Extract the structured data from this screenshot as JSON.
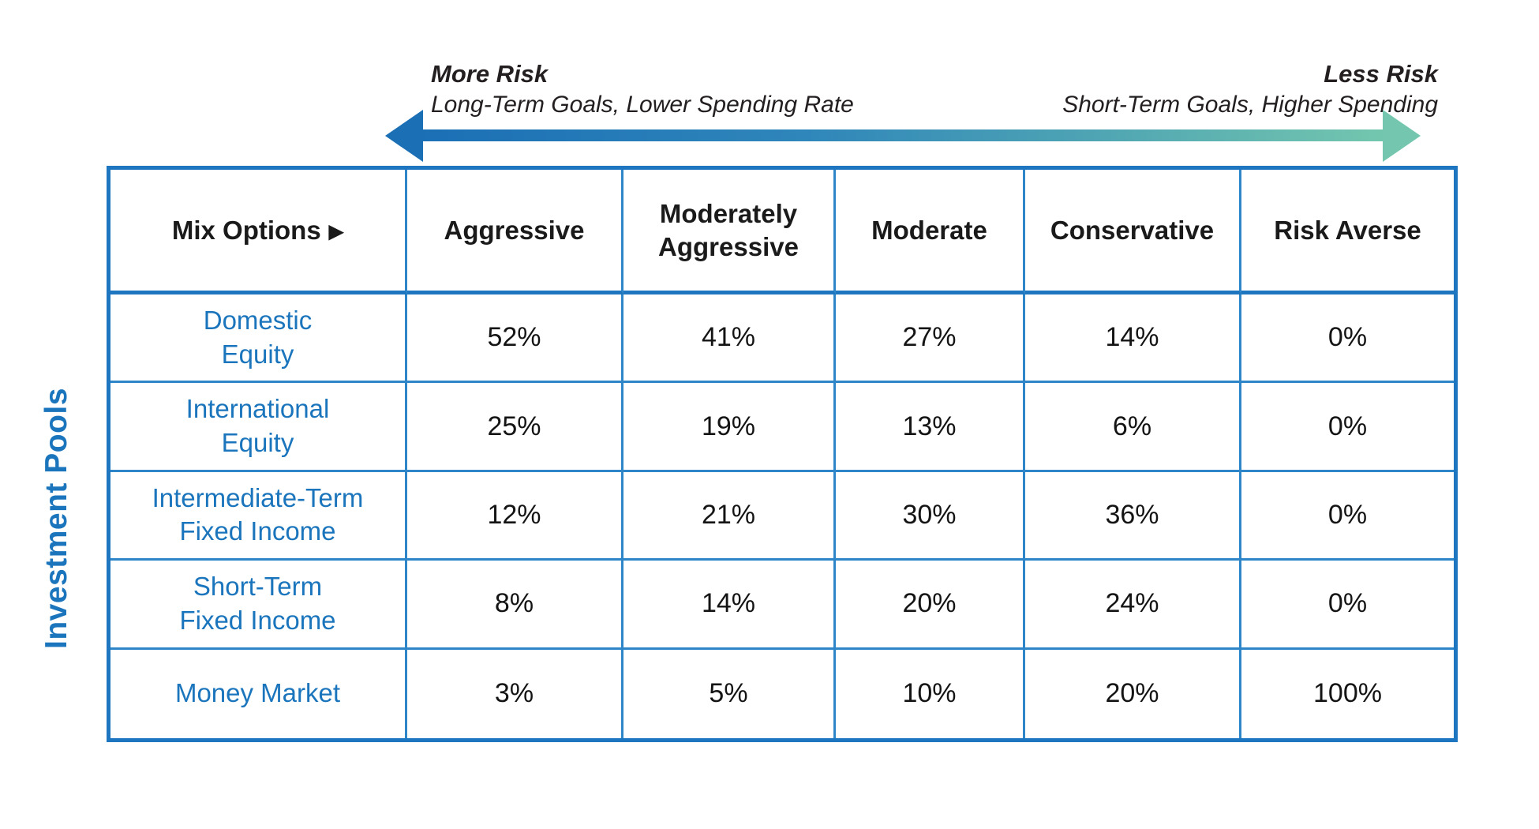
{
  "colors": {
    "table_outer_border": "#1d76bf",
    "cell_border": "#2e86c9",
    "row_label_blue": "#1b75bc",
    "arrow_left_blue": "#1b6fb5",
    "arrow_right_teal": "#74c7ae",
    "text_dark": "#231f20"
  },
  "risk_scale": {
    "left_title": "More Risk",
    "left_subtitle": "Long-Term Goals, Lower Spending Rate",
    "right_title": "Less Risk",
    "right_subtitle": "Short-Term Goals, Higher Spending"
  },
  "side_label": "Investment Pools",
  "table": {
    "corner_label": "Mix Options",
    "corner_arrow_icon": "▶",
    "columns": [
      "Aggressive",
      "Moderately Aggressive",
      "Moderate",
      "Conservative",
      "Risk Averse"
    ],
    "rows": [
      {
        "label": "Domestic\nEquity",
        "values": [
          "52%",
          "41%",
          "27%",
          "14%",
          "0%"
        ]
      },
      {
        "label": "International\nEquity",
        "values": [
          "25%",
          "19%",
          "13%",
          "6%",
          "0%"
        ]
      },
      {
        "label": "Intermediate-Term\nFixed Income",
        "values": [
          "12%",
          "21%",
          "30%",
          "36%",
          "0%"
        ]
      },
      {
        "label": "Short-Term\nFixed Income",
        "values": [
          "8%",
          "14%",
          "20%",
          "24%",
          "0%"
        ]
      },
      {
        "label": "Money Market",
        "values": [
          "3%",
          "5%",
          "10%",
          "20%",
          "100%"
        ]
      }
    ]
  },
  "chart_data": {
    "type": "table",
    "column_axis_label": "Mix Options",
    "row_axis_label": "Investment Pools",
    "columns": [
      "Aggressive",
      "Moderately Aggressive",
      "Moderate",
      "Conservative",
      "Risk Averse"
    ],
    "rows": [
      "Domestic Equity",
      "International Equity",
      "Intermediate-Term Fixed Income",
      "Short-Term Fixed Income",
      "Money Market"
    ],
    "values_percent": [
      [
        52,
        41,
        27,
        14,
        0
      ],
      [
        25,
        19,
        13,
        6,
        0
      ],
      [
        12,
        21,
        30,
        36,
        0
      ],
      [
        8,
        14,
        20,
        24,
        0
      ],
      [
        3,
        5,
        10,
        20,
        100
      ]
    ],
    "annotations": {
      "left": "More Risk — Long-Term Goals, Lower Spending Rate",
      "right": "Less Risk — Short-Term Goals, Higher Spending"
    }
  }
}
